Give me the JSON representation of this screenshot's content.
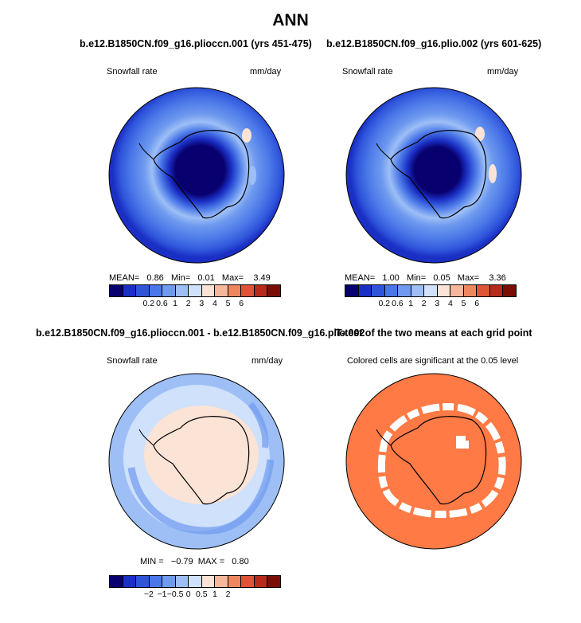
{
  "title": "ANN",
  "panels": [
    {
      "title": "b.e12.B1850CN.f09_g16.plioccn.001 (yrs 451-475)",
      "left_label": "Snowfall rate",
      "right_label": "mm/day",
      "stats": {
        "mean_label": "MEAN=",
        "mean": "0.86",
        "min_label": "Min=",
        "min": "0.01",
        "max_label": "Max=",
        "max": "3.49"
      },
      "colorbar_ticks": [
        "0.2",
        "0.6",
        "1",
        "2",
        "3",
        "4",
        "5",
        "6"
      ]
    },
    {
      "title": "b.e12.B1850CN.f09_g16.plio.002 (yrs 601-625)",
      "left_label": "Snowfall rate",
      "right_label": "mm/day",
      "stats": {
        "mean_label": "MEAN=",
        "mean": "1.00",
        "min_label": "Min=",
        "min": "0.05",
        "max_label": "Max=",
        "max": "3.36"
      },
      "colorbar_ticks": [
        "0.2",
        "0.6",
        "1",
        "2",
        "3",
        "4",
        "5",
        "6"
      ]
    },
    {
      "title": "b.e12.B1850CN.f09_g16.plioccn.001 - b.e12.B1850CN.f09_g16.plio.002",
      "left_label": "Snowfall rate",
      "right_label": "mm/day",
      "stats": {
        "min_label": "MIN =",
        "min": "−0.79",
        "max_label": "MAX =",
        "max": "0.80"
      },
      "colorbar_ticks": [
        "−2",
        "−1",
        "−0.5",
        "0",
        "0.5",
        "1",
        "2"
      ]
    },
    {
      "title": "T-test of the two means at each grid point",
      "subtitle": "Colored cells are significant at the 0.05 level"
    }
  ],
  "colors": {
    "abs_scale": [
      "#08006e",
      "#1a2fc4",
      "#2f55db",
      "#4a78e8",
      "#6f9aef",
      "#9dbff6",
      "#cfe1fb",
      "#fbe3d6",
      "#f6b89b",
      "#ee8760",
      "#dd5534",
      "#b82a1a",
      "#7a0e06"
    ],
    "diff_scale": [
      "#08006e",
      "#1a2fc4",
      "#2f55db",
      "#4a78e8",
      "#6f9aef",
      "#9dbff6",
      "#cfe1fb",
      "#fbe3d6",
      "#f6b89b",
      "#ee8760",
      "#dd5534",
      "#b82a1a",
      "#7a0e06"
    ],
    "ttest_color": "#ff7a45"
  }
}
